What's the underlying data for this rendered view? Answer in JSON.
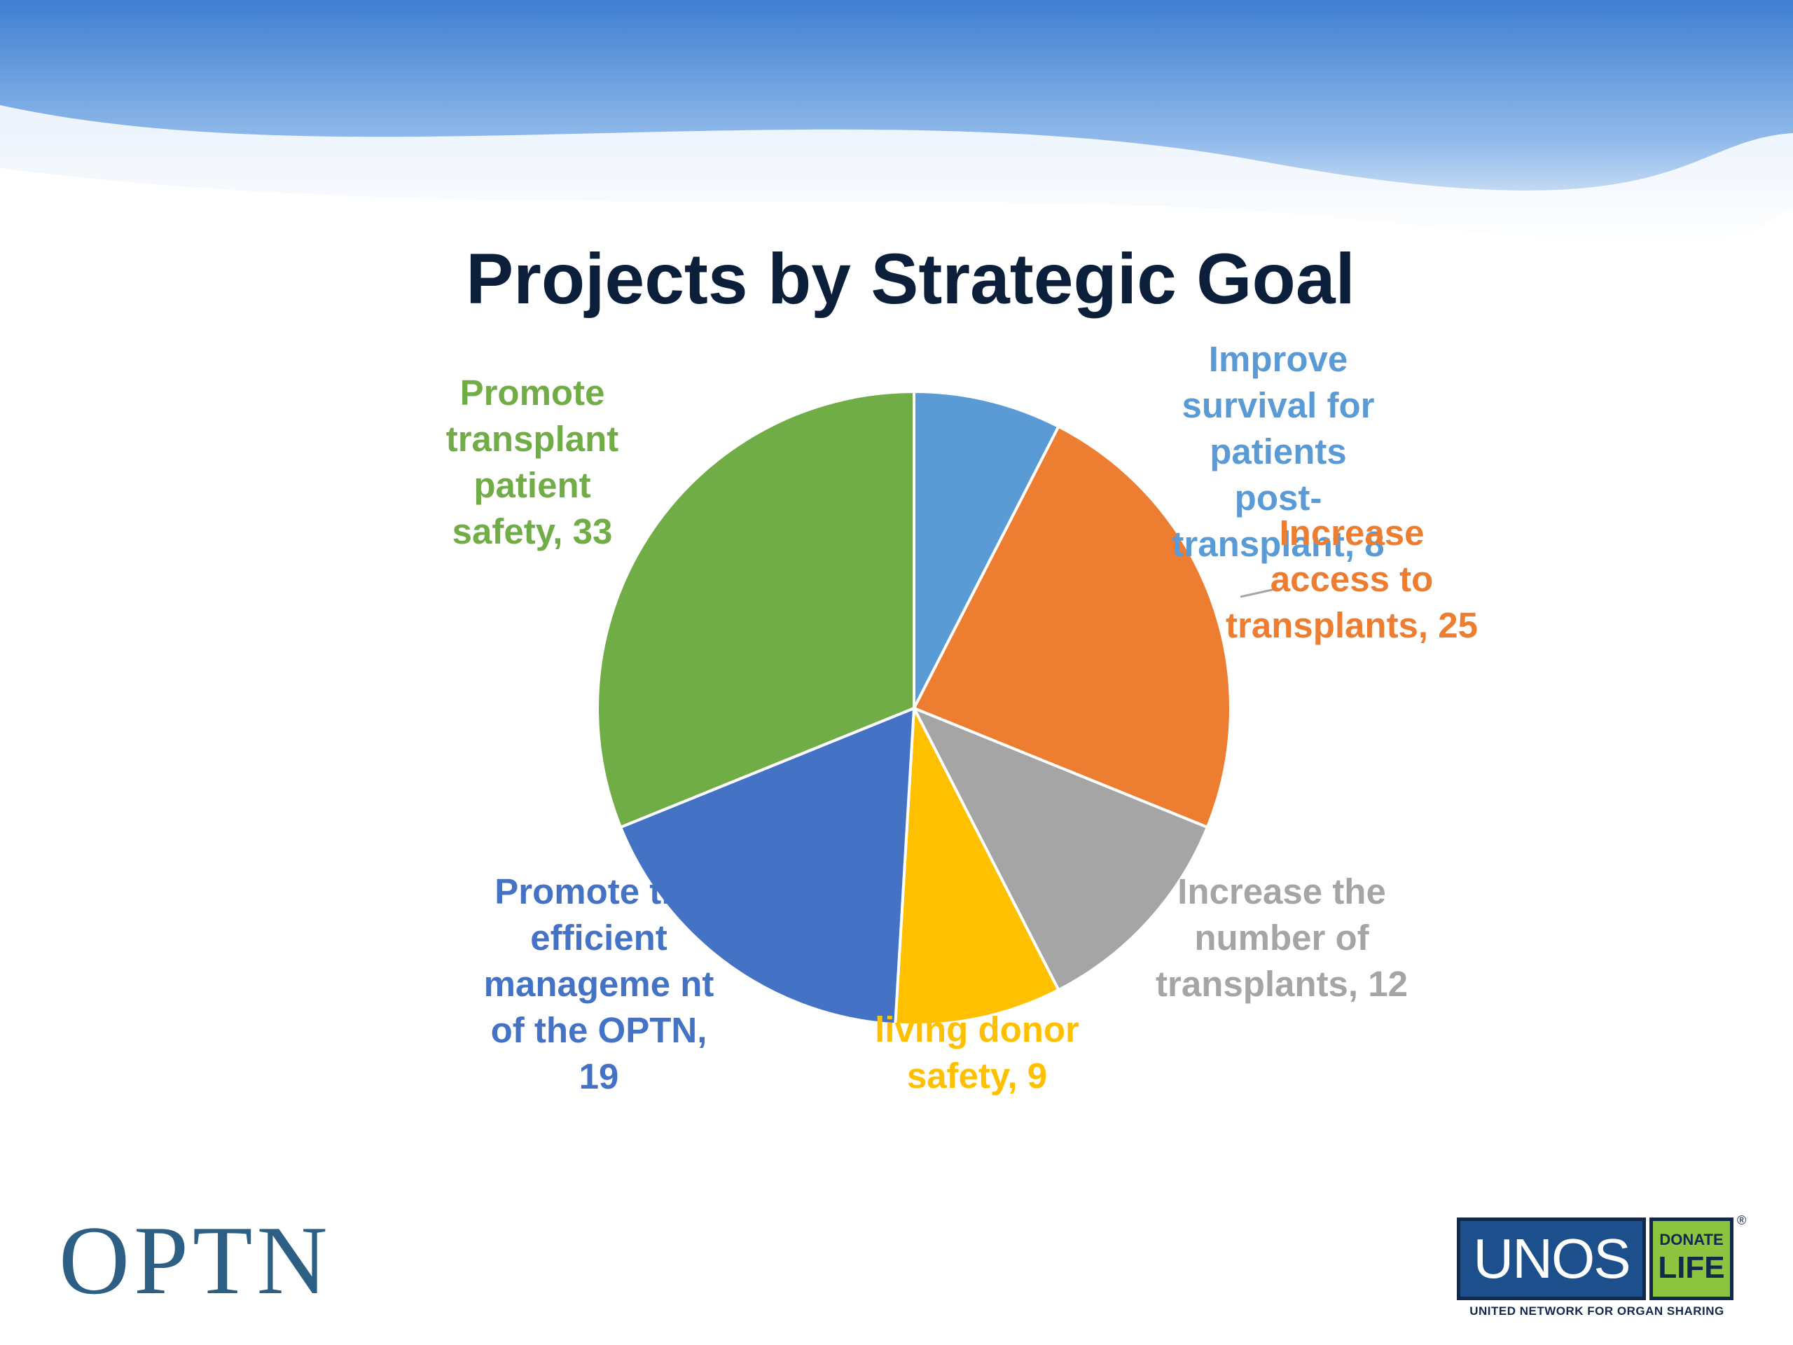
{
  "slide": {
    "title": "Projects by Strategic Goal"
  },
  "logos": {
    "optn": "OPTN",
    "unos": "UNOS",
    "donate_top": "DONATE",
    "donate_bottom": "LIFE",
    "registered": "®",
    "unos_tagline": "UNITED NETWORK FOR ORGAN SHARING"
  },
  "labels": {
    "improve_survival": "Improve survival for patients post-transplant, 8",
    "increase_access": "Increase access to transplants, 25",
    "increase_number": "Increase the number of transplants, 12",
    "living_donor": "living donor safety, 9",
    "efficient_mgmt": "Promote the efficient manageme nt of the OPTN, 19",
    "patient_safety": "Promote transplant patient safety, 33"
  },
  "chart_data": {
    "type": "pie",
    "title": "Projects by Strategic Goal",
    "start_angle_deg": 0,
    "direction": "clockwise",
    "categories": [
      "Improve survival for patients post-transplant",
      "Increase access to transplants",
      "Increase the number of transplants",
      "living donor safety",
      "Promote the efficient management of the OPTN",
      "Promote transplant patient safety"
    ],
    "values": [
      8,
      25,
      12,
      9,
      19,
      33
    ],
    "colors": [
      "#5b9bd5",
      "#ed7d31",
      "#a5a5a5",
      "#ffc000",
      "#4472c4",
      "#70ad47"
    ],
    "legend": "none",
    "data_labels": "category, value"
  },
  "colors": {
    "title": "#0b1f3a",
    "optn": "#2c5f83",
    "unos_blue": "#1c4f8c",
    "donate_green": "#8cc43f"
  }
}
